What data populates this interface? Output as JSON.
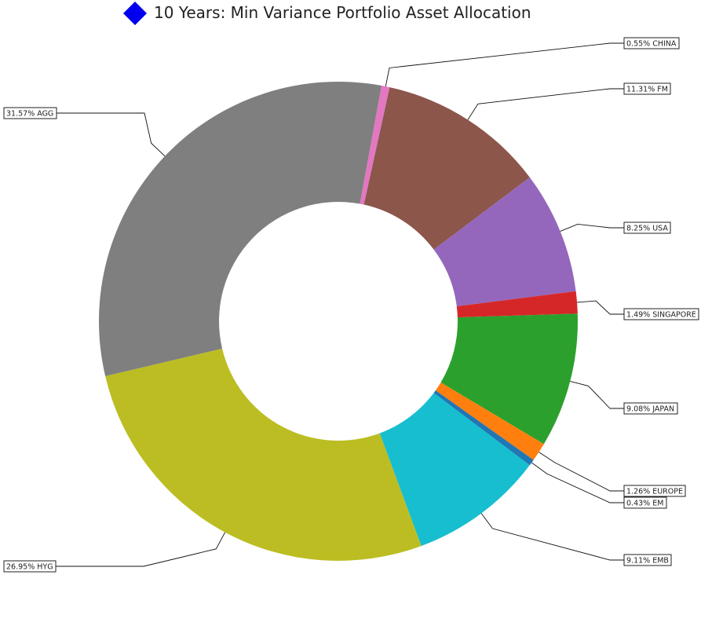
{
  "chart_data": {
    "type": "pie",
    "title": "10 Years: Min Variance Portfolio Asset Allocation",
    "title_icon": "blue-diamond-icon",
    "title_icon_color": "#0000ee",
    "donut": true,
    "slices": [
      {
        "name": "CHINA",
        "value": 0.55,
        "label": "0.55% CHINA",
        "color": "#e377c2"
      },
      {
        "name": "FM",
        "value": 11.31,
        "label": "11.31% FM",
        "color": "#8c564b"
      },
      {
        "name": "USA",
        "value": 8.25,
        "label": "8.25% USA",
        "color": "#9467bd"
      },
      {
        "name": "SINGAPORE",
        "value": 1.49,
        "label": "1.49% SINGAPORE",
        "color": "#d62728"
      },
      {
        "name": "JAPAN",
        "value": 9.08,
        "label": "9.08% JAPAN",
        "color": "#2ca02c"
      },
      {
        "name": "EUROPE",
        "value": 1.26,
        "label": "1.26% EUROPE",
        "color": "#ff7f0e"
      },
      {
        "name": "EM",
        "value": 0.43,
        "label": "0.43% EM",
        "color": "#1f77b4"
      },
      {
        "name": "EMB",
        "value": 9.11,
        "label": "9.11% EMB",
        "color": "#17becf"
      },
      {
        "name": "HYG",
        "value": 26.95,
        "label": "26.95% HYG",
        "color": "#bcbd22"
      },
      {
        "name": "AGG",
        "value": 31.57,
        "label": "31.57% AGG",
        "color": "#7f7f7f"
      }
    ]
  }
}
